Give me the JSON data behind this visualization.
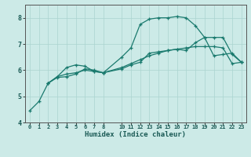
{
  "xlabel": "Humidex (Indice chaleur)",
  "ylabel": "",
  "background_color": "#cceae7",
  "grid_color": "#aad4d0",
  "line_color": "#1a7a6e",
  "xlim": [
    -0.5,
    23.5
  ],
  "ylim": [
    4,
    8.5
  ],
  "xticks": [
    0,
    1,
    2,
    3,
    4,
    5,
    6,
    7,
    8,
    10,
    11,
    12,
    13,
    14,
    15,
    16,
    17,
    18,
    19,
    20,
    21,
    22,
    23
  ],
  "yticks": [
    4,
    5,
    6,
    7,
    8
  ],
  "curve1_x": [
    0,
    1,
    2,
    3,
    4,
    5,
    6,
    7,
    8,
    10,
    11,
    12,
    13,
    14,
    15,
    16,
    17,
    18,
    19,
    20,
    21,
    22,
    23
  ],
  "curve1_y": [
    4.45,
    4.8,
    5.5,
    5.75,
    6.1,
    6.2,
    6.15,
    5.95,
    5.9,
    6.5,
    6.85,
    7.75,
    7.95,
    8.0,
    8.0,
    8.05,
    8.0,
    7.7,
    7.25,
    6.55,
    6.6,
    6.65,
    6.3
  ],
  "curve2_x": [
    2,
    3,
    4,
    5,
    6,
    7,
    8,
    10,
    11,
    12,
    13,
    14,
    15,
    16,
    17,
    18,
    19,
    20,
    21,
    22,
    23
  ],
  "curve2_y": [
    5.5,
    5.75,
    5.85,
    5.9,
    6.0,
    5.95,
    5.9,
    6.1,
    6.25,
    6.4,
    6.55,
    6.65,
    6.75,
    6.8,
    6.85,
    6.9,
    6.9,
    6.9,
    6.85,
    6.25,
    6.3
  ],
  "curve3_x": [
    2,
    3,
    4,
    5,
    6,
    7,
    8,
    10,
    11,
    12,
    13,
    14,
    15,
    16,
    17,
    18,
    19,
    20,
    21,
    22,
    23
  ],
  "curve3_y": [
    5.5,
    5.72,
    5.75,
    5.85,
    6.05,
    6.0,
    5.9,
    6.05,
    6.2,
    6.3,
    6.65,
    6.7,
    6.75,
    6.8,
    6.75,
    7.05,
    7.25,
    7.25,
    7.25,
    6.6,
    6.3
  ]
}
